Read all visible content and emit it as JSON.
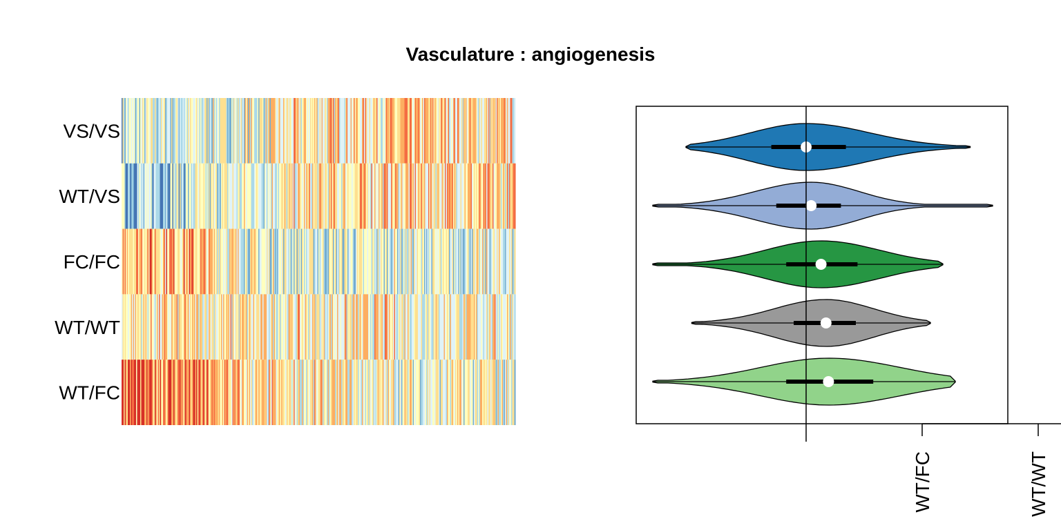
{
  "title": "Vasculature : angiogenesis",
  "colors": {
    "palette_low_to_high": [
      "#4575b4",
      "#74add1",
      "#abd9e9",
      "#e0f3f8",
      "#ffffbf",
      "#fee090",
      "#fdae61",
      "#f46d43",
      "#d73027"
    ],
    "violin_fills": [
      "#1f78b4",
      "#93acd6",
      "#269643",
      "#999999",
      "#91d38a"
    ]
  },
  "chart_data": [
    {
      "type": "heatmap",
      "rows": [
        "VS/VS",
        "WT/VS",
        "FC/FC",
        "WT/WT",
        "WT/FC"
      ],
      "columns_count": 380,
      "grid": false,
      "row_profiles": [
        {
          "label": "VS/VS",
          "mean_level_left_to_right": [
            0.35,
            0.4,
            0.45,
            0.55,
            0.6,
            0.6,
            0.55
          ]
        },
        {
          "label": "WT/VS",
          "mean_level_left_to_right": [
            0.25,
            0.35,
            0.45,
            0.55,
            0.6,
            0.6,
            0.55
          ]
        },
        {
          "label": "FC/FC",
          "mean_level_left_to_right": [
            0.72,
            0.68,
            0.45,
            0.4,
            0.42,
            0.4,
            0.42
          ]
        },
        {
          "label": "WT/WT",
          "mean_level_left_to_right": [
            0.55,
            0.55,
            0.52,
            0.52,
            0.52,
            0.5,
            0.52
          ]
        },
        {
          "label": "WT/FC",
          "mean_level_left_to_right": [
            0.8,
            0.78,
            0.55,
            0.52,
            0.48,
            0.47,
            0.45
          ]
        }
      ]
    },
    {
      "type": "violin",
      "orientation": "horizontal",
      "reference_line": true,
      "x_tick_labels": [
        "WT/FC",
        "WT/WT"
      ],
      "series": [
        {
          "fill": "#1f78b4",
          "min": -1.45,
          "q1": -0.42,
          "median": 0.0,
          "q3": 0.48,
          "max": 1.98
        },
        {
          "fill": "#93acd6",
          "min": -1.85,
          "q1": -0.36,
          "median": 0.06,
          "q3": 0.42,
          "max": 2.25
        },
        {
          "fill": "#269643",
          "min": -1.85,
          "q1": -0.24,
          "median": 0.18,
          "q3": 0.62,
          "max": 1.65
        },
        {
          "fill": "#999999",
          "min": -1.38,
          "q1": -0.15,
          "median": 0.24,
          "q3": 0.6,
          "max": 1.5
        },
        {
          "fill": "#91d38a",
          "min": -1.85,
          "q1": -0.24,
          "median": 0.27,
          "q3": 0.81,
          "max": 1.8
        }
      ]
    }
  ]
}
